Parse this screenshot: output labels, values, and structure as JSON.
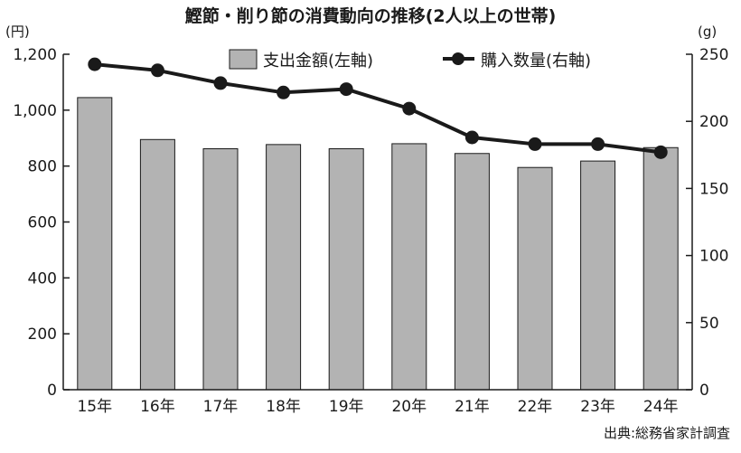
{
  "chart_data": {
    "type": "bar+line",
    "title": "鰹節・削り節の消費動向の推移(2人以上の世帯)",
    "categories": [
      "15年",
      "16年",
      "17年",
      "18年",
      "19年",
      "20年",
      "21年",
      "22年",
      "23年",
      "24年"
    ],
    "series": [
      {
        "name": "支出金額(左軸)",
        "type": "bar",
        "axis": "left",
        "color": "#b3b3b3",
        "values": [
          1045,
          895,
          862,
          877,
          862,
          880,
          845,
          795,
          818,
          866
        ]
      },
      {
        "name": "購入数量(右軸)",
        "type": "line",
        "axis": "right",
        "color": "#1a1a1a",
        "values": [
          242.5,
          238,
          228.5,
          221.5,
          224,
          209.5,
          188,
          183,
          183,
          177
        ]
      }
    ],
    "left_axis": {
      "unit": "(円)",
      "ylim": [
        0,
        1200
      ],
      "ticks": [
        "0",
        "200",
        "400",
        "600",
        "800",
        "1,000",
        "1,200"
      ]
    },
    "right_axis": {
      "unit": "(g)",
      "ylim": [
        0,
        250
      ],
      "ticks": [
        "0",
        "50",
        "100",
        "150",
        "200",
        "250"
      ]
    },
    "legend": "top-right",
    "grid": false,
    "source": "出典:総務省家計調査"
  }
}
